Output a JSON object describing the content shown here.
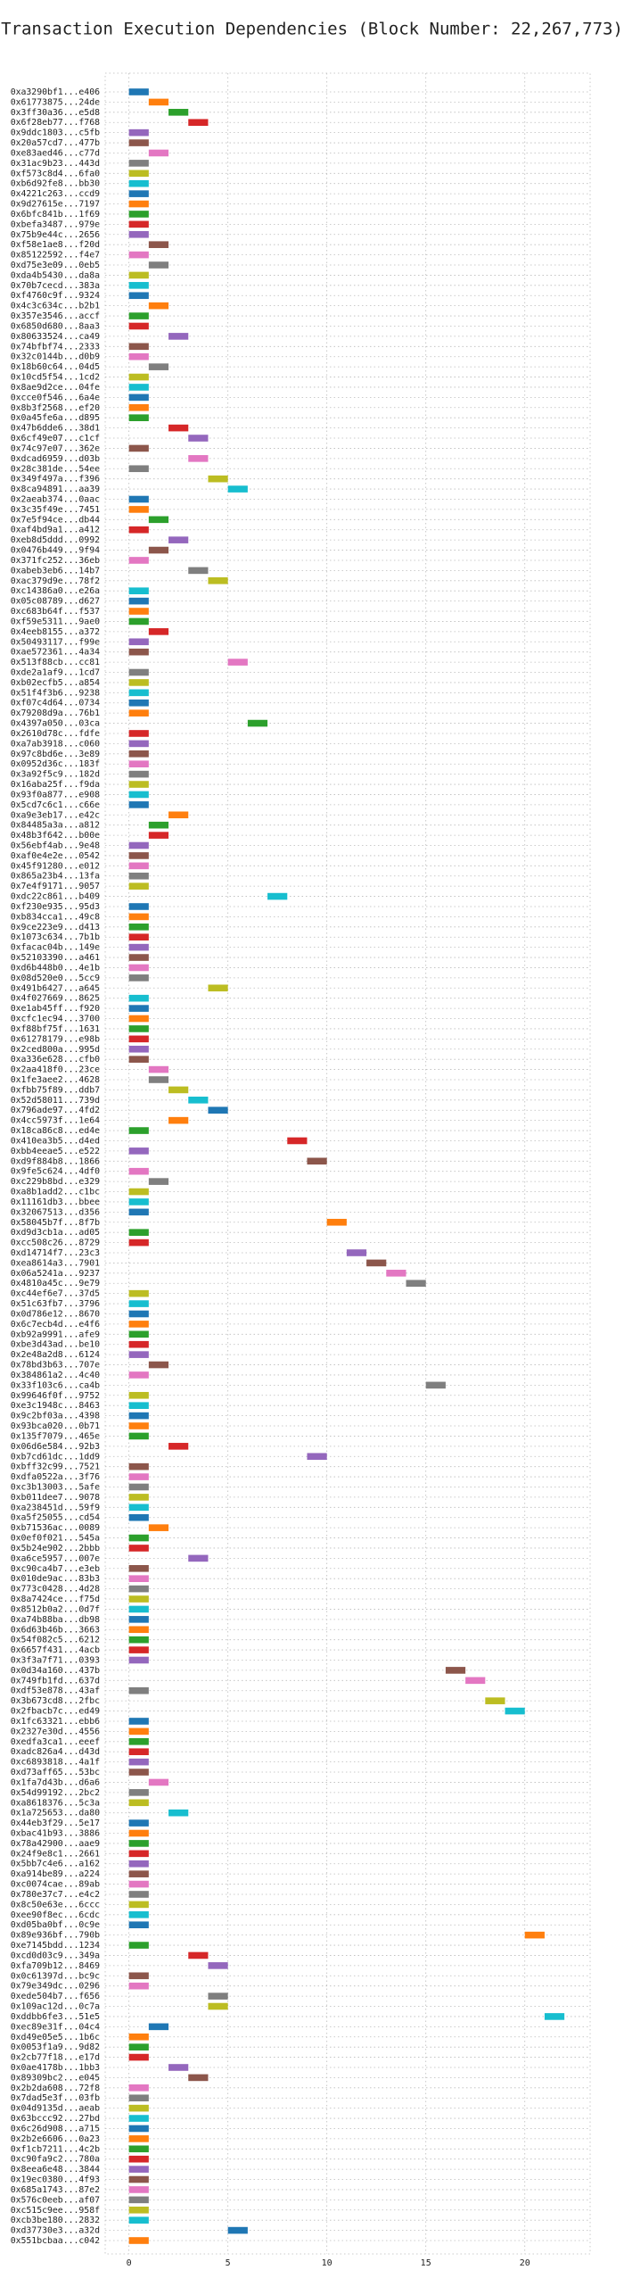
{
  "chart_data": {
    "type": "gantt",
    "title": "Transaction Execution Dependencies (Block Number: 22,267,773)",
    "categories": [
      "0xa3290bf1...e406",
      "0x61773875...24de",
      "0x3ff30a36...e5d8",
      "0x6f28eb77...f768",
      "0x9ddc1803...c5fb",
      "0x20a57cd7...477b",
      "0xe83aed46...c77d",
      "0x31ac9b23...443d",
      "0xf573c8d4...6fa0",
      "0xb6d92fe8...bb30",
      "0x4221c263...ccd9",
      "0x9d27615e...7197",
      "0x6bfc841b...1f69",
      "0xbefa3487...979e",
      "0x75b9e44c...2656",
      "0xf58e1ae8...f20d",
      "0x85122592...f4e7",
      "0xd75e3e09...0eb5",
      "0xda4b5430...da8a",
      "0x70b7cecd...383a",
      "0xf4760c9f...9324",
      "0x4c3c634c...b2b1",
      "0x357e3546...accf",
      "0x6850d680...8aa3",
      "0x80633524...ca49",
      "0x74bfbf74...2333",
      "0x32c0144b...d0b9",
      "0x18b60c64...04d5",
      "0x10cd5f54...1cd2",
      "0x8ae9d2ce...04fe",
      "0xcce0f546...6a4e",
      "0x8b3f2568...ef20",
      "0x0a45fe6a...d895",
      "0x47b6dde6...38d1",
      "0x6cf49e07...c1cf",
      "0x74c97e07...362e",
      "0xdcad6959...d03b",
      "0x28c381de...54ee",
      "0x349f497a...f396",
      "0x8ca94891...aa39",
      "0x2aeab374...0aac",
      "0x3c35f49e...7451",
      "0x7e5f94ce...db44",
      "0xaf4bd9a1...a412",
      "0xeb8d5ddd...0992",
      "0x0476b449...9f94",
      "0x371fc252...36eb",
      "0xabeb3eb6...14b7",
      "0xac379d9e...78f2",
      "0xc14386a0...e26a",
      "0x05c08789...d627",
      "0xc683b64f...f537",
      "0xf59e5311...9ae0",
      "0x4eeb8155...a372",
      "0x50493117...f99e",
      "0xae572361...4a34",
      "0x513f88cb...cc81",
      "0xde2a1af9...1cd7",
      "0xb02ecfb5...a854",
      "0x51f4f3b6...9238",
      "0xf07c4d64...0734",
      "0x79208d9a...76b1",
      "0x4397a050...03ca",
      "0x2610d78c...fdfe",
      "0xa7ab3918...c060",
      "0x97c8bd6e...3e89",
      "0x0952d36c...183f",
      "0x3a92f5c9...182d",
      "0x16aba25f...f9da",
      "0x93f0a877...e908",
      "0x5cd7c6c1...c66e",
      "0xa9e3eb17...e42c",
      "0x84485a3a...a812",
      "0x48b3f642...b00e",
      "0x56ebf4ab...9e48",
      "0xaf0e4e2e...0542",
      "0x45f91280...e012",
      "0x865a23b4...13fa",
      "0x7e4f9171...9057",
      "0xdc22c861...b409",
      "0xf230e935...95d3",
      "0xb834cca1...49c8",
      "0x9ce223e9...d413",
      "0x1073c634...7b1b",
      "0xfacac04b...149e",
      "0x52103390...a461",
      "0xd6b448b0...4e1b",
      "0x08d520e0...5cc9",
      "0x491b6427...a645",
      "0x4f027669...8625",
      "0xe1ab45ff...f920",
      "0xcfc1ec94...3700",
      "0xf88bf75f...1631",
      "0x61278179...e98b",
      "0x2ced800a...995d",
      "0xa336e628...cfb0",
      "0x2aa418f0...23ce",
      "0x1fe3aee2...4628",
      "0xfbb75f89...ddb7",
      "0x52d58011...739d",
      "0x796ade97...4fd2",
      "0x4cc5973f...1e64",
      "0x18ca86c8...ed4e",
      "0x410ea3b5...d4ed",
      "0xbb4eeae5...e522",
      "0xd9f884b8...1866",
      "0x9fe5c624...4df0",
      "0xc229b8bd...e329",
      "0xa8b1add2...c1bc",
      "0x11161db3...bbee",
      "0x32067513...d356",
      "0x58045b7f...8f7b",
      "0xd9d3cb1a...ad05",
      "0xcc508c26...8729",
      "0xd14714f7...23c3",
      "0xea8614a3...7901",
      "0x06a5241a...9237",
      "0x4810a45c...9e79",
      "0xc44ef6e7...37d5",
      "0x51c63fb7...3796",
      "0x0d786e12...8670",
      "0x6c7ecb4d...e4f6",
      "0xb92a9991...afe9",
      "0xbe3d43ad...be10",
      "0x2e48a2d8...6124",
      "0x78bd3b63...707e",
      "0x384861a2...4c40",
      "0x33f103c6...ca4b",
      "0x99646f0f...9752",
      "0xe3c1948c...8463",
      "0x9c2bf03a...4398",
      "0x93bca020...0b71",
      "0x135f7079...465e",
      "0x06d6e584...92b3",
      "0xb7cd61dc...1dd9",
      "0xbff32c99...7521",
      "0xdfa0522a...3f76",
      "0xc3b13003...5afe",
      "0xb011dee7...9078",
      "0xa238451d...59f9",
      "0xa5f25055...cd54",
      "0xb71536ac...0089",
      "0x0ef0f021...545a",
      "0x5b24e902...2bbb",
      "0xa6ce5957...007e",
      "0xc90ca4b7...e3eb",
      "0x010de9ac...83b3",
      "0x773c0428...4d28",
      "0x8a7424ce...f75d",
      "0x8512b0a2...0d7f",
      "0xa74b88ba...db98",
      "0x6d63b46b...3663",
      "0x54f082c5...6212",
      "0x6657f431...4acb",
      "0x3f3a7f71...0393",
      "0x0d34a160...437b",
      "0x749fb1fd...637d",
      "0xdf53e878...43af",
      "0x3b673cd8...2fbc",
      "0x2fbacb7c...ed49",
      "0x1fc63321...ebb6",
      "0x2327e30d...4556",
      "0xedfa3ca1...eeef",
      "0xadc826a4...d43d",
      "0xc6893818...4a1f",
      "0xd73aff65...53bc",
      "0x1fa7d43b...d6a6",
      "0x54d99192...2bc2",
      "0xa8618376...5c3a",
      "0x1a725653...da80",
      "0x44eb3f29...5e17",
      "0xbac41b93...3886",
      "0x78a42900...aae9",
      "0x24f9e8c1...2661",
      "0x5bb7c4e6...a162",
      "0xa914be89...a224",
      "0xc0074cae...89ab",
      "0x780e37c7...e4c2",
      "0x8c50e63e...6ccc",
      "0xee90f8ec...6cdc",
      "0xd05ba0bf...0c9e",
      "0x89e936bf...790b",
      "0xe7145bdd...1234",
      "0xcd0d03c9...349a",
      "0xfa709b12...8469",
      "0x0c61397d...bc9c",
      "0x79e349dc...0296",
      "0xede504b7...f656",
      "0x109ac12d...0c7a",
      "0xddbb6fe3...51e5",
      "0xec89e31f...04c4",
      "0xd49e05e5...1b6c",
      "0x0053f1a9...9d82",
      "0x2cb77f18...e17d",
      "0x0ae4178b...1bb3",
      "0x89309bc2...e045",
      "0x2b2da608...72f8",
      "0x7dad5e3f...03fb",
      "0x04d9135d...aeab",
      "0x63bccc92...27bd",
      "0x6c26d908...a715",
      "0x2b2e6606...0a23",
      "0xf1cb7211...4c2b",
      "0xc90fa9c2...780a",
      "0x8eea6e48...3844",
      "0x19ec0380...4f93",
      "0x685a1743...87e2",
      "0x576c0eeb...af07",
      "0xc515c9ee...958f",
      "0xcb3be180...2832",
      "0xd37730e3...a32d",
      "0x551bcbaa...c042"
    ],
    "values": [
      0,
      1,
      2,
      3,
      0,
      0,
      1,
      0,
      0,
      0,
      0,
      0,
      0,
      0,
      0,
      1,
      0,
      1,
      0,
      0,
      0,
      1,
      0,
      0,
      2,
      0,
      0,
      1,
      0,
      0,
      0,
      0,
      0,
      2,
      3,
      0,
      3,
      0,
      4,
      5,
      0,
      0,
      1,
      0,
      2,
      1,
      0,
      3,
      4,
      0,
      0,
      0,
      0,
      1,
      0,
      0,
      5,
      0,
      0,
      0,
      0,
      0,
      6,
      0,
      0,
      0,
      0,
      0,
      0,
      0,
      0,
      2,
      1,
      1,
      0,
      0,
      0,
      0,
      0,
      7,
      0,
      0,
      0,
      0,
      0,
      0,
      0,
      0,
      4,
      0,
      0,
      0,
      0,
      0,
      0,
      0,
      1,
      1,
      2,
      3,
      4,
      2,
      0,
      8,
      0,
      9,
      0,
      1,
      0,
      0,
      0,
      10,
      0,
      0,
      11,
      12,
      13,
      14,
      0,
      0,
      0,
      0,
      0,
      0,
      0,
      1,
      0,
      15,
      0,
      0,
      0,
      0,
      0,
      2,
      9,
      0,
      0,
      0,
      0,
      0,
      0,
      1,
      0,
      0,
      3,
      0,
      0,
      0,
      0,
      0,
      0,
      0,
      0,
      0,
      0,
      16,
      17,
      0,
      18,
      19,
      0,
      0,
      0,
      0,
      0,
      0,
      1,
      0,
      0,
      2,
      0,
      0,
      0,
      0,
      0,
      0,
      0,
      0,
      0,
      0,
      0,
      20,
      0,
      3,
      4,
      0,
      0,
      4,
      4,
      21,
      1,
      0,
      0,
      0,
      2,
      3,
      0,
      0,
      0,
      0,
      0,
      0,
      0,
      0,
      0,
      0,
      0,
      0,
      0,
      0,
      5,
      0
    ],
    "bar_length": 1,
    "colors": [
      "#1f77b4",
      "#ff7f0e",
      "#2ca02c",
      "#d62728",
      "#9467bd",
      "#8c564b",
      "#e377c2",
      "#7f7f7f",
      "#bcbd22",
      "#17becf"
    ],
    "xlim": [
      -1.2,
      23.3
    ],
    "xticks": [
      0,
      5,
      10,
      15,
      20
    ],
    "grid": true
  }
}
